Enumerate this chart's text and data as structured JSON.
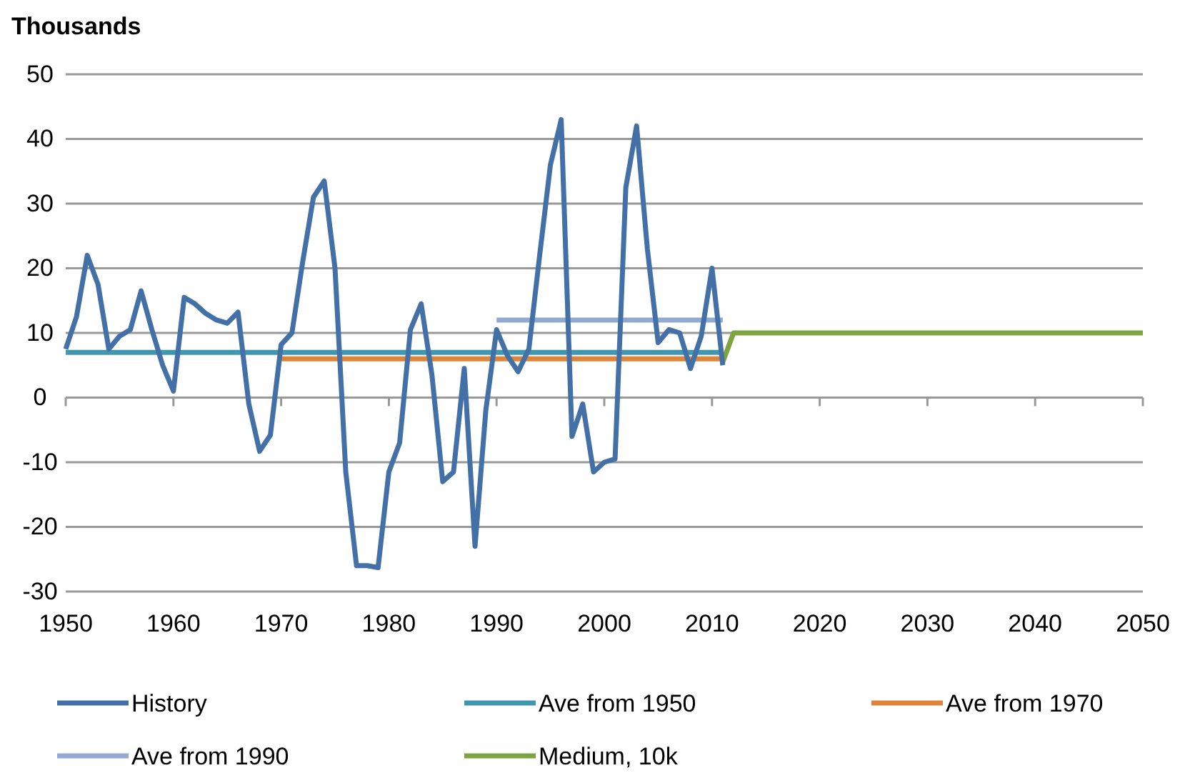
{
  "chart_data": {
    "type": "line",
    "ylabel": "Thousands",
    "xlim": [
      1950,
      2050
    ],
    "xticks": [
      1950,
      1960,
      1970,
      1980,
      1990,
      2000,
      2010,
      2020,
      2030,
      2040,
      2050
    ],
    "ylim": [
      -30,
      50
    ],
    "yticks": [
      -30,
      -20,
      -10,
      0,
      10,
      20,
      30,
      40,
      50
    ],
    "grid": "y",
    "legend": "bottom",
    "marker": "none",
    "line_style": "solid",
    "series": [
      {
        "name": "History",
        "color": "#4470a8",
        "x": [
          1950,
          1951,
          1952,
          1953,
          1954,
          1955,
          1956,
          1957,
          1958,
          1959,
          1960,
          1961,
          1962,
          1963,
          1964,
          1965,
          1966,
          1967,
          1968,
          1969,
          1970,
          1971,
          1972,
          1973,
          1974,
          1975,
          1976,
          1977,
          1978,
          1979,
          1980,
          1981,
          1982,
          1983,
          1984,
          1985,
          1986,
          1987,
          1988,
          1989,
          1990,
          1991,
          1992,
          1993,
          1994,
          1995,
          1996,
          1997,
          1998,
          1999,
          2000,
          2001,
          2002,
          2003,
          2004,
          2005,
          2006,
          2007,
          2008,
          2009,
          2010,
          2011
        ],
        "values": [
          7.5,
          12.5,
          22,
          17.5,
          7.5,
          9.5,
          10.5,
          16.5,
          10.5,
          5,
          1,
          15.5,
          14.5,
          13,
          12,
          11.5,
          13.2,
          -1,
          -8.3,
          -5.8,
          8.2,
          10,
          21,
          31,
          33.5,
          20,
          -11.5,
          -26,
          -26,
          -26.3,
          -11.5,
          -7,
          10.5,
          14.5,
          3.5,
          -13,
          -11.5,
          4.5,
          -23,
          -2,
          10.5,
          6.5,
          4,
          7.5,
          22,
          36,
          43,
          -6,
          -1,
          -11.5,
          -10,
          -9.5,
          32.5,
          42,
          23,
          8.5,
          10.5,
          10,
          4.5,
          9.5,
          20,
          5
        ]
      },
      {
        "name": "Ave from 1950",
        "color": "#4098b0",
        "x": [
          1950,
          2011
        ],
        "values": [
          7,
          7
        ]
      },
      {
        "name": "Ave from 1970",
        "color": "#e0843a",
        "x": [
          1970,
          2011
        ],
        "values": [
          6,
          6
        ]
      },
      {
        "name": "Ave from 1990",
        "color": "#93a9d2",
        "x": [
          1990,
          2011
        ],
        "values": [
          12,
          12
        ]
      },
      {
        "name": "Medium, 10k",
        "color": "#7ea43f",
        "x": [
          2011,
          2012,
          2050
        ],
        "values": [
          5.5,
          10,
          10
        ]
      }
    ]
  }
}
